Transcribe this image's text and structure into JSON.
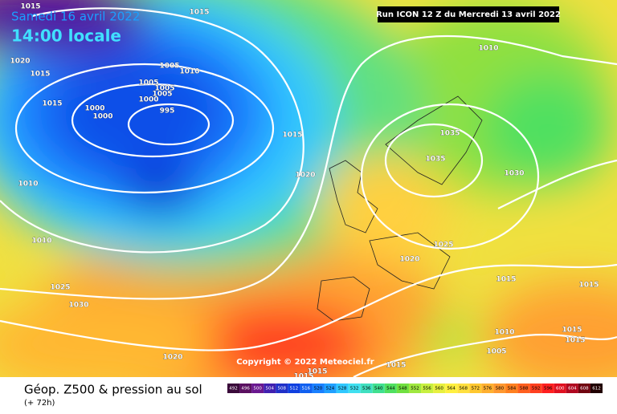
{
  "header": {
    "date": "Samedi 16 avril 2022",
    "time": "14:00 locale",
    "run": "Run ICON 12 Z du Mercredi 13 avril 2022"
  },
  "copyright": "Copyright © 2022 Meteociel.fr",
  "footer": {
    "title": "Géop. Z500 & pression au sol",
    "lead": "(+ 72h)"
  },
  "isobars": [
    1015,
    1015,
    1020,
    1015,
    1005,
    1010,
    1005,
    1005,
    1005,
    1000,
    1000,
    1000,
    995,
    1015,
    1015,
    1035,
    1035,
    1030,
    1020,
    1010,
    1010,
    1025,
    1020,
    1015,
    1015,
    1025,
    1030,
    1010,
    1015,
    1015,
    1005,
    1020,
    1015,
    1015,
    1015,
    1010
  ],
  "legend": {
    "labels": [
      492,
      496,
      500,
      504,
      508,
      512,
      516,
      520,
      524,
      528,
      532,
      536,
      540,
      544,
      548,
      552,
      556,
      560,
      564,
      568,
      572,
      576,
      580,
      584,
      588,
      592,
      596,
      600,
      604,
      608,
      612
    ],
    "colors": [
      "#3a0a3a",
      "#5a1060",
      "#6a1890",
      "#4020b0",
      "#2030c8",
      "#1040e0",
      "#1060f0",
      "#1a80ff",
      "#20a0ff",
      "#30c8ff",
      "#40e0f0",
      "#40e0c0",
      "#40e090",
      "#50e060",
      "#70e040",
      "#a0e840",
      "#c8f040",
      "#e8f040",
      "#fff040",
      "#ffe040",
      "#ffc830",
      "#ffb030",
      "#ff9830",
      "#ff8020",
      "#ff6020",
      "#ff4020",
      "#ff2020",
      "#e01020",
      "#b00820",
      "#700410",
      "#200000"
    ]
  }
}
